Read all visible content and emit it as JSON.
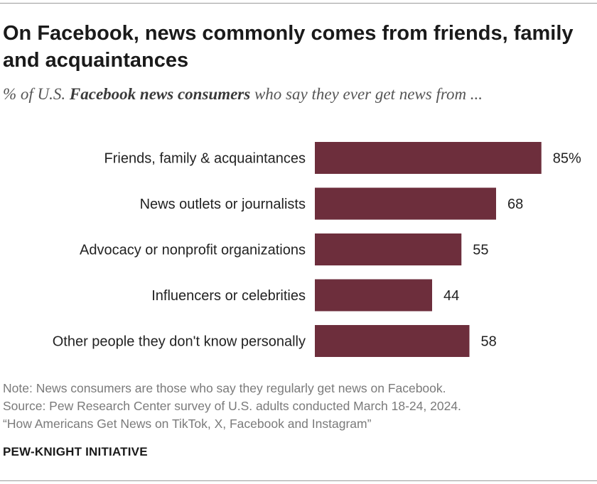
{
  "header": {
    "title": "On Facebook, news commonly comes from friends, family and acquaintances",
    "subtitle_prefix": "% of U.S. ",
    "subtitle_emphasis": "Facebook news consumers",
    "subtitle_suffix": " who say they ever get news from ..."
  },
  "chart_data": {
    "type": "bar",
    "orientation": "horizontal",
    "categories": [
      "Friends, family & acquaintances",
      "News outlets or journalists",
      "Advocacy or nonprofit organizations",
      "Influencers or celebrities",
      "Other people they don't know personally"
    ],
    "values": [
      85,
      68,
      55,
      44,
      58
    ],
    "value_labels": [
      "85%",
      "68",
      "55",
      "44",
      "58"
    ],
    "xlim": [
      0,
      100
    ],
    "grid": false,
    "bar_color": "#6d2e3c"
  },
  "footer": {
    "note": "Note: News consumers are those who say they regularly get news on Facebook.",
    "source": "Source: Pew Research Center survey of U.S. adults conducted March 18-24, 2024.",
    "report": "“How Americans Get News on TikTok, X, Facebook and Instagram”",
    "brand": "PEW-KNIGHT INITIATIVE"
  }
}
